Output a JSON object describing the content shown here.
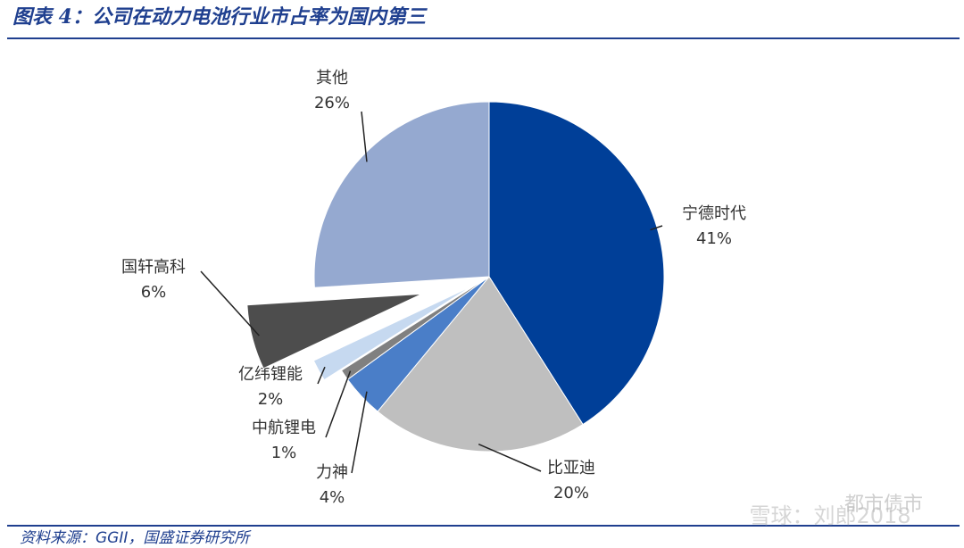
{
  "chart_data": {
    "type": "pie",
    "title": "图表 4：公司在动力电池行业市占率为国内第三",
    "categories": [
      "宁德时代",
      "比亚迪",
      "力神",
      "中航锂电",
      "亿纬锂能",
      "国轩高科",
      "其他"
    ],
    "values": [
      41,
      20,
      4,
      1,
      2,
      6,
      26
    ],
    "value_labels": [
      "41%",
      "20%",
      "4%",
      "1%",
      "2%",
      "6%",
      "26%"
    ],
    "colors": [
      "#003f98",
      "#bfbfbf",
      "#4a7ec8",
      "#808080",
      "#c6d9f0",
      "#4d4d4d",
      "#95a9d0"
    ],
    "source": "资料来源：GGII，国盛证券研究所",
    "watermark": [
      "都市债市",
      "雪球：刘郎2018"
    ]
  }
}
